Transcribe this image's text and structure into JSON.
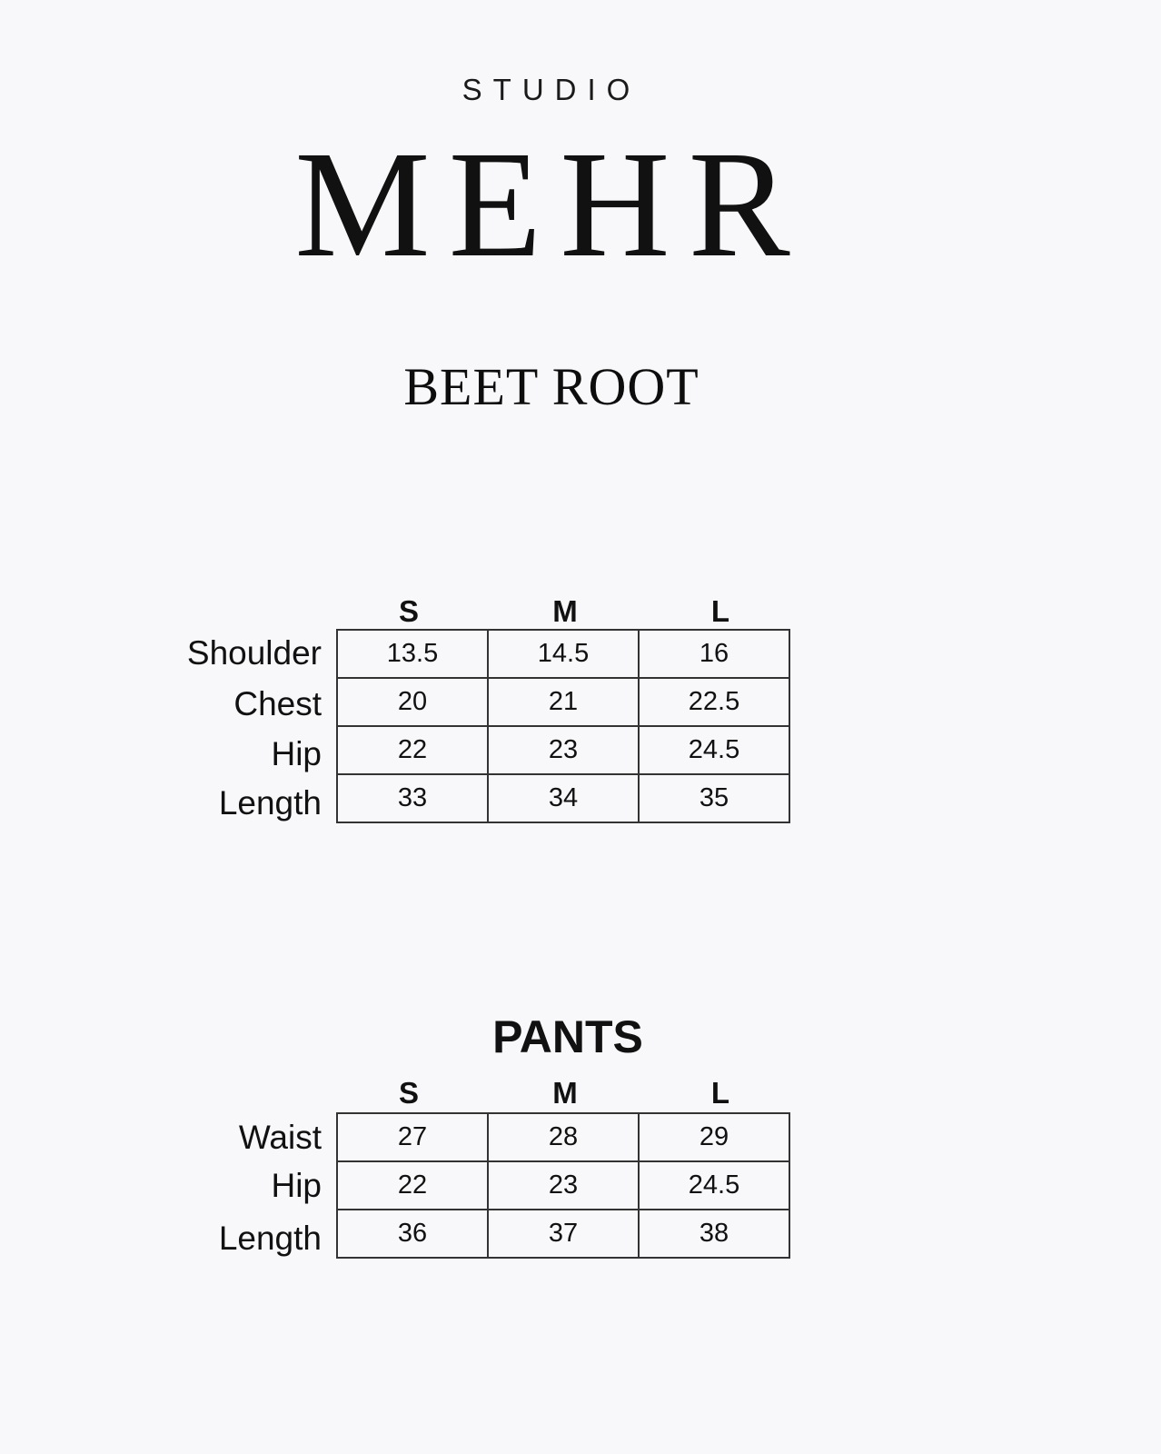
{
  "logo": {
    "studio": "STUDIO",
    "name": "MEHR"
  },
  "collection": "BEET ROOT",
  "top_chart": {
    "sizes": [
      "S",
      "M",
      "L"
    ],
    "rows": [
      {
        "label": "Shoulder",
        "values": [
          "13.5",
          "14.5",
          "16"
        ]
      },
      {
        "label": "Chest",
        "values": [
          "20",
          "21",
          "22.5"
        ]
      },
      {
        "label": "Hip",
        "values": [
          "22",
          "23",
          "24.5"
        ]
      },
      {
        "label": "Length",
        "values": [
          "33",
          "34",
          "35"
        ]
      }
    ]
  },
  "pants_chart": {
    "title": "PANTS",
    "sizes": [
      "S",
      "M",
      "L"
    ],
    "rows": [
      {
        "label": "Waist",
        "values": [
          "27",
          "28",
          "29"
        ]
      },
      {
        "label": "Hip",
        "values": [
          "22",
          "23",
          "24.5"
        ]
      },
      {
        "label": "Length",
        "values": [
          "36",
          "37",
          "38"
        ]
      }
    ]
  }
}
